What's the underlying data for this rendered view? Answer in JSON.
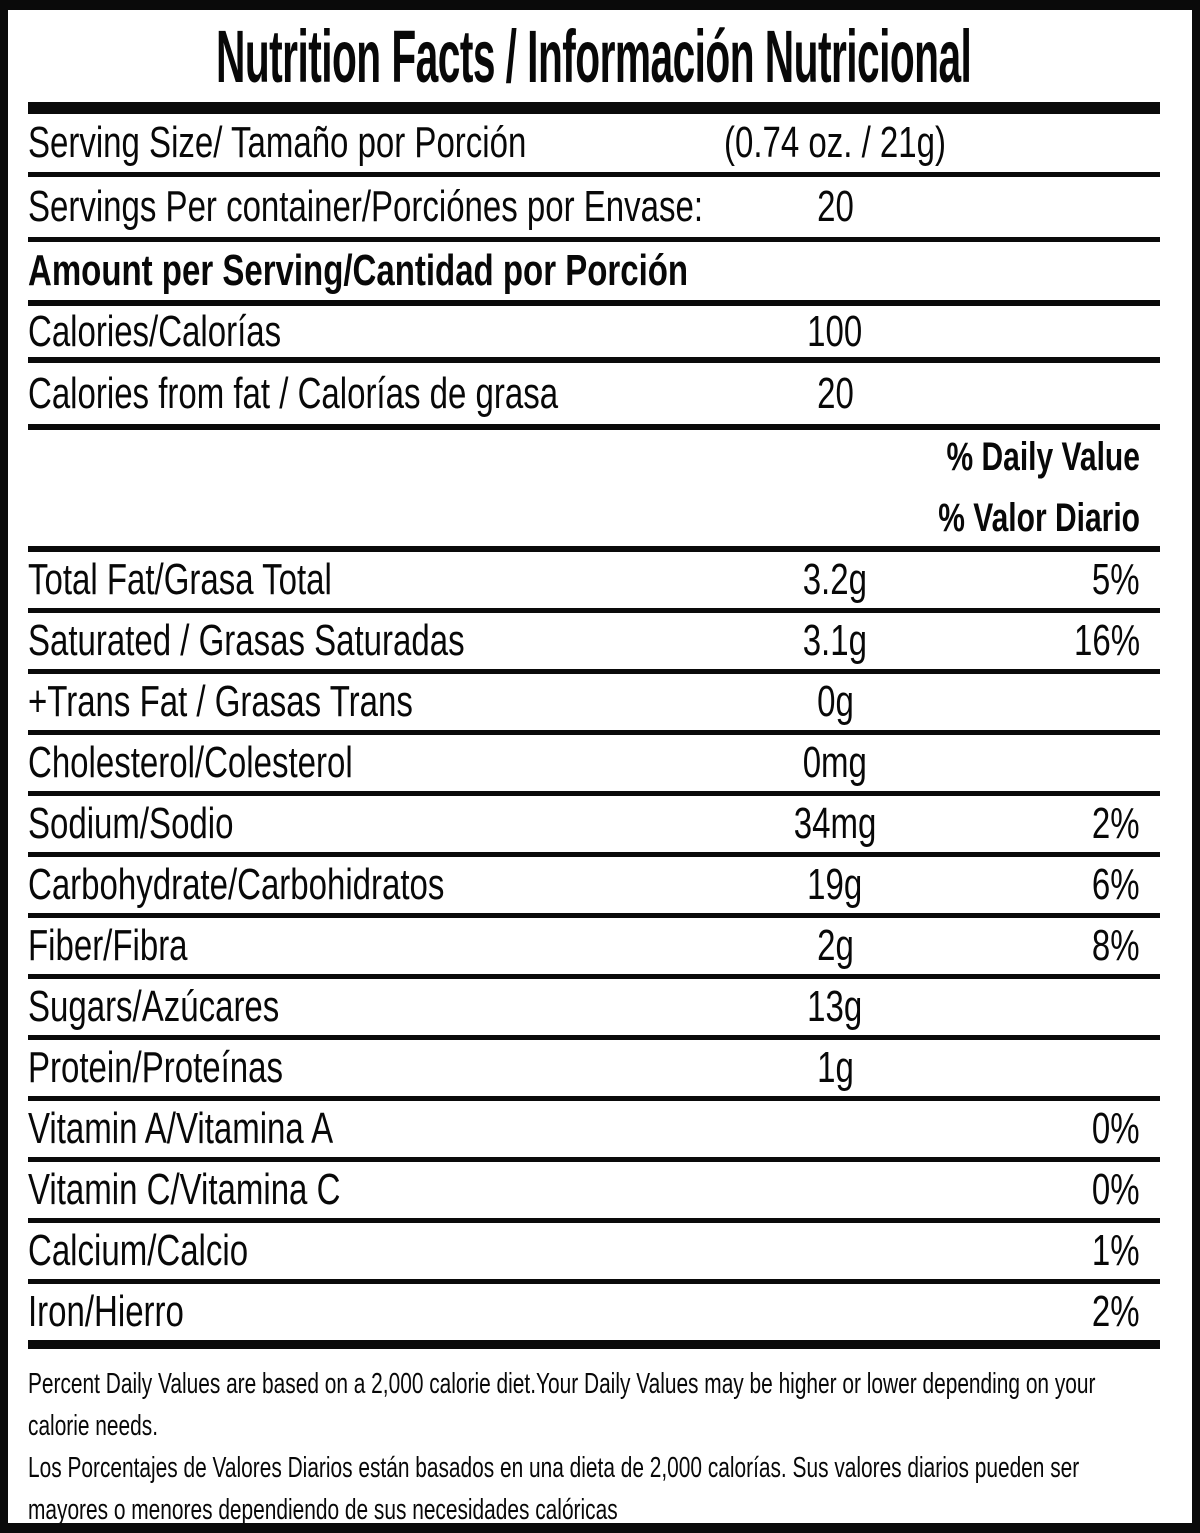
{
  "title": "Nutrition Facts / Información Nutricional",
  "colors": {
    "ink": "#0a0a0a",
    "background": "#ffffff"
  },
  "serving_info": {
    "serving_size": {
      "label": "Serving Size/ Tamaño por Porción",
      "value": "(0.74 oz. / 21g)"
    },
    "servings_per_container": {
      "label": "Servings Per container/Porciónes por Envase:",
      "value": "20"
    }
  },
  "section_header": "Amount per Serving/Cantidad por Porción",
  "calories_rows": [
    {
      "label": "Calories/Calorías",
      "value": "100"
    },
    {
      "label": "Calories from fat / Calorías de grasa",
      "value": "20"
    }
  ],
  "daily_value_header": {
    "line1": "% Daily Value",
    "line2": "% Valor Diario"
  },
  "nutrients": [
    {
      "label": "Total Fat/Grasa Total",
      "value": "3.2g",
      "percent": "5%"
    },
    {
      "label": "Saturated / Grasas Saturadas",
      "value": "3.1g",
      "percent": "16%"
    },
    {
      "label": "+Trans Fat / Grasas Trans",
      "value": "0g",
      "percent": ""
    },
    {
      "label": "Cholesterol/Colesterol",
      "value": "0mg",
      "percent": ""
    },
    {
      "label": "Sodium/Sodio",
      "value": "34mg",
      "percent": "2%"
    },
    {
      "label": "Carbohydrate/Carbohidratos",
      "value": "19g",
      "percent": "6%"
    },
    {
      "label": "Fiber/Fibra",
      "value": "2g",
      "percent": "8%"
    },
    {
      "label": "Sugars/Azúcares",
      "value": "13g",
      "percent": ""
    },
    {
      "label": "Protein/Proteínas",
      "value": "1g",
      "percent": ""
    },
    {
      "label": "Vitamin A/Vitamina A",
      "value": "",
      "percent": "0%"
    },
    {
      "label": "Vitamin C/Vitamina C",
      "value": "",
      "percent": "0%"
    },
    {
      "label": "Calcium/Calcio",
      "value": "",
      "percent": "1%"
    },
    {
      "label": "Iron/Hierro",
      "value": "",
      "percent": "2%"
    }
  ],
  "footnotes": {
    "english": "Percent Daily Values are based on a 2,000 calorie diet.Your Daily Values may be higher or lower depending on your calorie needs.",
    "spanish": "Los Porcentajes de Valores Diarios están basados en una dieta de 2,000 calorías. Sus valores diarios pueden ser mayores o menores dependiendo de sus necesidades calóricas"
  }
}
